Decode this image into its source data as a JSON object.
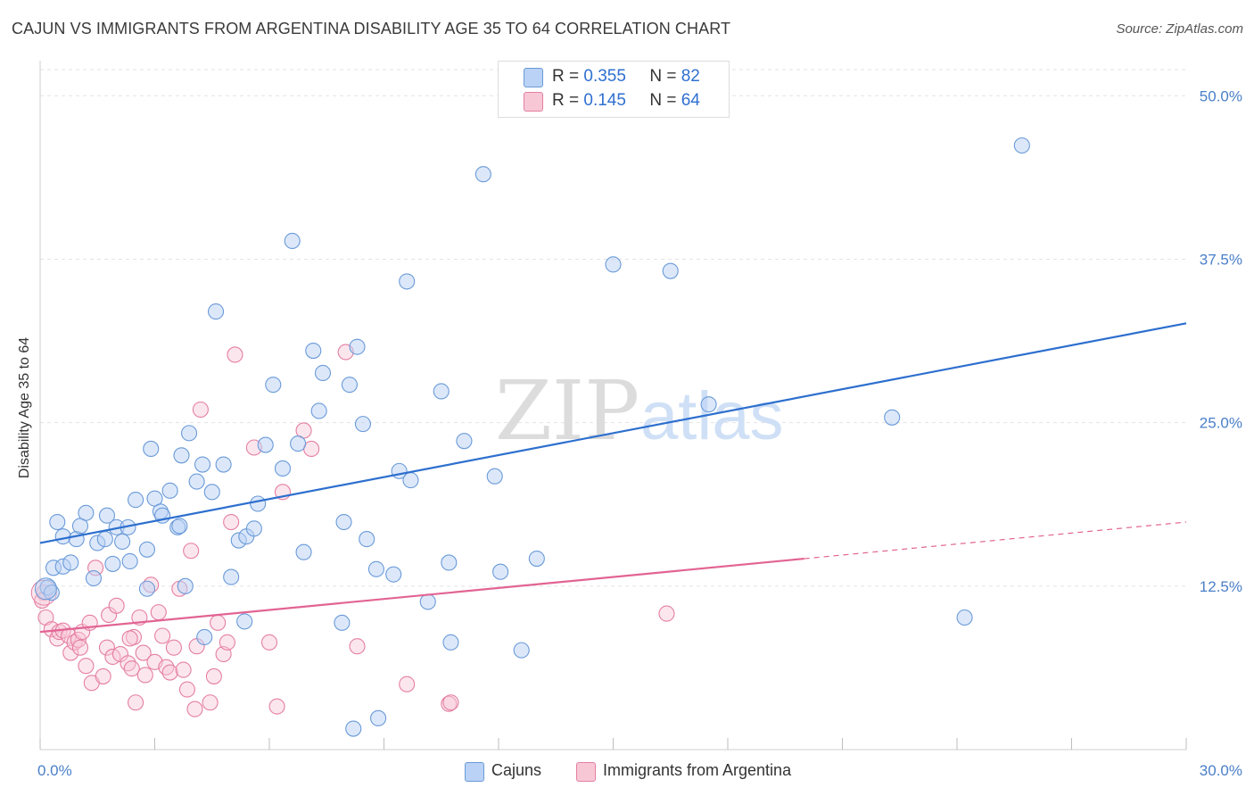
{
  "title": "CAJUN VS IMMIGRANTS FROM ARGENTINA DISABILITY AGE 35 TO 64 CORRELATION CHART",
  "source": "Source: ZipAtlas.com",
  "watermark": {
    "a": "ZIP",
    "b": "atlas"
  },
  "legend_top": [
    {
      "r_label": "R =",
      "r_value": "0.355",
      "n_label": "N =",
      "n_value": "82"
    },
    {
      "r_label": "R =",
      "r_value": "0.145",
      "n_label": "N =",
      "n_value": "64"
    }
  ],
  "colors": {
    "cajun_fill": "#b9d2f5",
    "cajun_stroke": "#6a9ad8",
    "cajun_line": "#2d6fce",
    "arg_fill": "#f8c7d6",
    "arg_stroke": "#e47fa2",
    "arg_line": "#e26492",
    "grid": "#e3e3e3",
    "tick_label": "#4a7fc8"
  },
  "chart_data": {
    "type": "scatter",
    "title": "CAJUN VS IMMIGRANTS FROM ARGENTINA DISABILITY AGE 35 TO 64 CORRELATION CHART",
    "xlabel": "",
    "ylabel": "Disability Age 35 to 64",
    "xlim": [
      0,
      30
    ],
    "ylim": [
      0,
      52
    ],
    "x_tick_labels": [
      "0.0%",
      "30.0%"
    ],
    "y_ticks": [
      12.5,
      25.0,
      37.5,
      50.0
    ],
    "y_tick_labels": [
      "12.5%",
      "25.0%",
      "37.5%",
      "50.0%"
    ],
    "grid": true,
    "legend_position": "bottom",
    "series": [
      {
        "name": "Cajuns",
        "trend": {
          "x": [
            0,
            30
          ],
          "y": [
            15.8,
            32.6
          ],
          "style": "solid"
        },
        "points": [
          [
            0.2,
            12.4
          ],
          [
            0.3,
            12.0
          ],
          [
            0.35,
            13.9
          ],
          [
            0.45,
            17.4
          ],
          [
            0.6,
            16.3
          ],
          [
            0.6,
            14.0
          ],
          [
            0.8,
            14.3
          ],
          [
            0.95,
            16.1
          ],
          [
            1.05,
            17.1
          ],
          [
            1.2,
            18.1
          ],
          [
            1.4,
            13.1
          ],
          [
            1.5,
            15.8
          ],
          [
            1.7,
            16.1
          ],
          [
            1.75,
            17.9
          ],
          [
            1.9,
            14.2
          ],
          [
            2.0,
            17.0
          ],
          [
            2.15,
            15.9
          ],
          [
            2.3,
            17.0
          ],
          [
            2.35,
            14.4
          ],
          [
            2.5,
            19.1
          ],
          [
            2.8,
            12.3
          ],
          [
            2.8,
            15.3
          ],
          [
            2.9,
            23.0
          ],
          [
            3.0,
            19.2
          ],
          [
            3.15,
            18.2
          ],
          [
            3.2,
            17.9
          ],
          [
            3.4,
            19.8
          ],
          [
            3.6,
            17.0
          ],
          [
            3.65,
            17.1
          ],
          [
            3.7,
            22.5
          ],
          [
            3.8,
            12.5
          ],
          [
            3.9,
            24.2
          ],
          [
            4.1,
            20.5
          ],
          [
            4.25,
            21.8
          ],
          [
            4.3,
            8.6
          ],
          [
            4.5,
            19.7
          ],
          [
            4.6,
            33.5
          ],
          [
            4.8,
            21.8
          ],
          [
            5.0,
            13.2
          ],
          [
            5.2,
            16.0
          ],
          [
            5.35,
            9.8
          ],
          [
            5.4,
            16.3
          ],
          [
            5.6,
            16.9
          ],
          [
            5.7,
            18.8
          ],
          [
            5.9,
            23.3
          ],
          [
            6.1,
            27.9
          ],
          [
            6.35,
            21.5
          ],
          [
            6.6,
            38.9
          ],
          [
            6.75,
            23.4
          ],
          [
            6.9,
            15.1
          ],
          [
            7.15,
            30.5
          ],
          [
            7.3,
            25.9
          ],
          [
            7.4,
            28.8
          ],
          [
            7.9,
            9.7
          ],
          [
            7.95,
            17.4
          ],
          [
            8.1,
            27.9
          ],
          [
            8.2,
            1.6
          ],
          [
            8.3,
            30.8
          ],
          [
            8.45,
            24.9
          ],
          [
            8.55,
            16.1
          ],
          [
            8.8,
            13.8
          ],
          [
            8.85,
            2.4
          ],
          [
            9.25,
            13.4
          ],
          [
            9.4,
            21.3
          ],
          [
            9.6,
            35.8
          ],
          [
            9.7,
            20.6
          ],
          [
            10.15,
            11.3
          ],
          [
            10.5,
            27.4
          ],
          [
            10.7,
            14.3
          ],
          [
            10.75,
            8.2
          ],
          [
            11.1,
            23.6
          ],
          [
            11.6,
            44.0
          ],
          [
            11.9,
            20.9
          ],
          [
            12.05,
            13.6
          ],
          [
            12.6,
            7.6
          ],
          [
            13.0,
            14.6
          ],
          [
            15.0,
            37.1
          ],
          [
            16.5,
            36.6
          ],
          [
            17.5,
            26.4
          ],
          [
            22.3,
            25.4
          ],
          [
            24.2,
            10.1
          ],
          [
            25.7,
            46.2
          ]
        ]
      },
      {
        "name": "Immigrants from Argentina",
        "trend": {
          "x": [
            0,
            20
          ],
          "y": [
            9.0,
            14.6
          ],
          "style": "solid",
          "extension": {
            "x": [
              20,
              30
            ],
            "y": [
              14.6,
              17.4
            ],
            "style": "dashed"
          }
        },
        "points": [
          [
            0.1,
            12.0
          ],
          [
            0.15,
            10.1
          ],
          [
            0.3,
            9.2
          ],
          [
            0.45,
            8.5
          ],
          [
            0.5,
            9.0
          ],
          [
            0.6,
            9.1
          ],
          [
            0.75,
            8.7
          ],
          [
            0.8,
            7.4
          ],
          [
            0.9,
            8.2
          ],
          [
            1.0,
            8.4
          ],
          [
            1.05,
            7.8
          ],
          [
            1.1,
            9.0
          ],
          [
            1.3,
            9.7
          ],
          [
            1.35,
            5.1
          ],
          [
            1.45,
            13.9
          ],
          [
            1.65,
            5.6
          ],
          [
            1.75,
            7.8
          ],
          [
            1.8,
            10.3
          ],
          [
            1.9,
            7.1
          ],
          [
            2.0,
            11.0
          ],
          [
            2.1,
            7.3
          ],
          [
            2.3,
            6.6
          ],
          [
            2.4,
            6.2
          ],
          [
            2.45,
            8.6
          ],
          [
            2.5,
            3.6
          ],
          [
            2.6,
            10.1
          ],
          [
            2.7,
            7.4
          ],
          [
            2.75,
            5.7
          ],
          [
            2.9,
            12.6
          ],
          [
            3.0,
            6.7
          ],
          [
            3.1,
            10.5
          ],
          [
            3.2,
            8.7
          ],
          [
            3.3,
            6.3
          ],
          [
            3.4,
            5.9
          ],
          [
            3.5,
            7.8
          ],
          [
            3.65,
            12.3
          ],
          [
            3.75,
            6.1
          ],
          [
            3.85,
            4.6
          ],
          [
            3.95,
            15.2
          ],
          [
            4.05,
            3.1
          ],
          [
            4.1,
            7.9
          ],
          [
            4.2,
            26.0
          ],
          [
            4.45,
            3.6
          ],
          [
            4.55,
            5.6
          ],
          [
            4.65,
            9.7
          ],
          [
            4.8,
            7.3
          ],
          [
            4.9,
            8.2
          ],
          [
            5.0,
            17.4
          ],
          [
            5.1,
            30.2
          ],
          [
            5.6,
            23.1
          ],
          [
            6.0,
            8.2
          ],
          [
            6.2,
            3.3
          ],
          [
            6.35,
            19.7
          ],
          [
            6.9,
            24.4
          ],
          [
            7.1,
            23.0
          ],
          [
            8.0,
            30.4
          ],
          [
            8.3,
            7.9
          ],
          [
            9.6,
            5.0
          ],
          [
            10.7,
            3.5
          ],
          [
            10.75,
            3.6
          ],
          [
            16.4,
            10.4
          ],
          [
            0.05,
            11.4
          ],
          [
            2.35,
            8.5
          ],
          [
            1.2,
            6.4
          ]
        ]
      }
    ]
  },
  "legend_bottom": [
    {
      "label": "Cajuns"
    },
    {
      "label": "Immigrants from Argentina"
    }
  ]
}
